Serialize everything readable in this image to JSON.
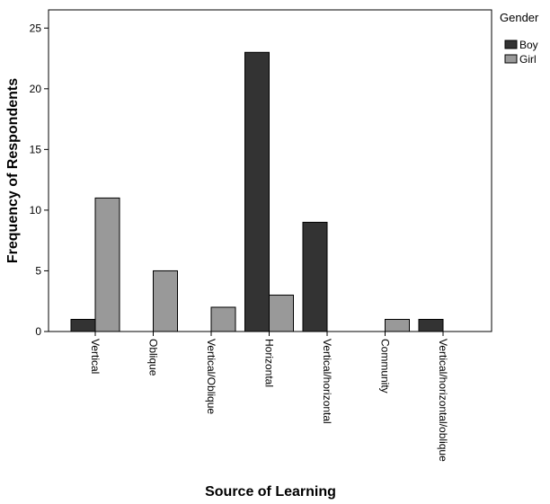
{
  "chart_data": {
    "type": "bar",
    "xlabel": "Source of Learning",
    "ylabel": "Frequency of Respondents",
    "categories": [
      "Vertical",
      "Oblique",
      "Vertical/Oblique",
      "Horizontal",
      "Vertical/horizontal",
      "Community",
      "Vertical/horizontal/oblique"
    ],
    "series": [
      {
        "name": "Boy",
        "values": [
          1,
          0,
          0,
          23,
          9,
          0,
          1
        ],
        "color": "#333333"
      },
      {
        "name": "Girl",
        "values": [
          11,
          5,
          2,
          3,
          0,
          1,
          0
        ],
        "color": "#999999"
      }
    ],
    "ylim": [
      0,
      26.5
    ],
    "yticks": [
      0,
      5,
      10,
      15,
      20,
      25
    ],
    "grid": false,
    "legend": {
      "title": "Gender",
      "position": "top-right"
    }
  }
}
